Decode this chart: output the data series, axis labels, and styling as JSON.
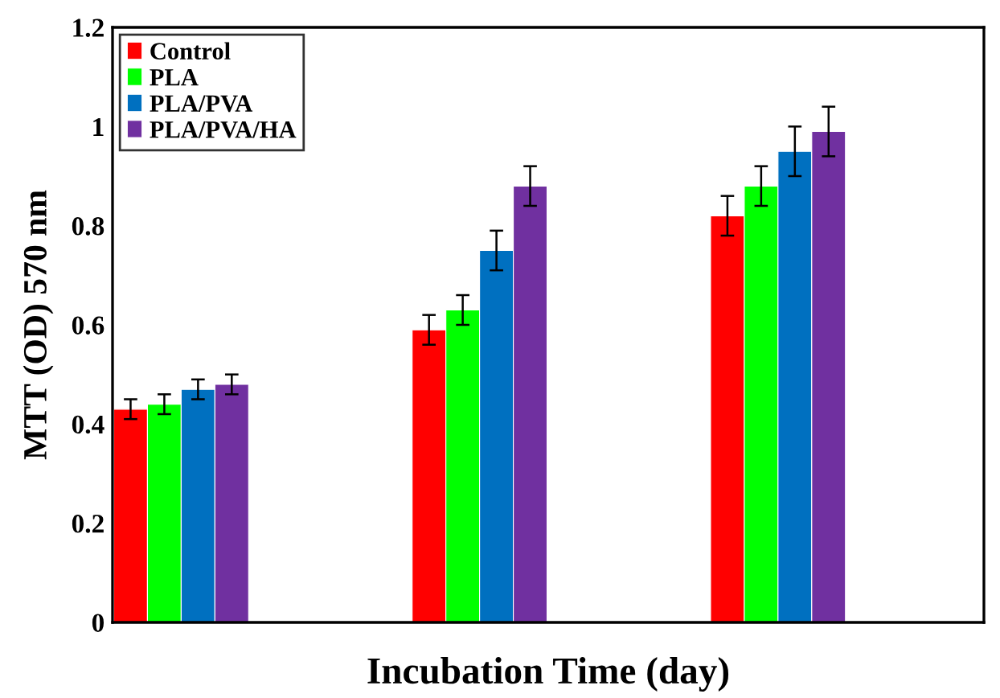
{
  "chart_data": {
    "type": "bar",
    "xlabel": "Incubation Time (day)",
    "ylabel": "MTT (OD) 570 nm",
    "categories": [
      null,
      null,
      null
    ],
    "series": [
      {
        "name": "Control",
        "color": "#ff0000",
        "values": [
          0.43,
          0.59,
          0.82
        ],
        "errors": [
          0.02,
          0.03,
          0.04
        ]
      },
      {
        "name": "PLA",
        "color": "#00ff00",
        "values": [
          0.44,
          0.63,
          0.88
        ],
        "errors": [
          0.02,
          0.03,
          0.04
        ]
      },
      {
        "name": "PLA/PVA",
        "color": "#0070c0",
        "values": [
          0.47,
          0.75,
          0.95
        ],
        "errors": [
          0.02,
          0.04,
          0.05
        ]
      },
      {
        "name": "PLA/PVA/HA",
        "color": "#7030a0",
        "values": [
          0.48,
          0.88,
          0.99
        ],
        "errors": [
          0.02,
          0.04,
          0.05
        ]
      }
    ],
    "ylim": [
      0,
      1.2
    ],
    "yticks": [
      0,
      0.2,
      0.4,
      0.6,
      0.8,
      1,
      1.2
    ],
    "grid": false,
    "legend": "top left"
  }
}
